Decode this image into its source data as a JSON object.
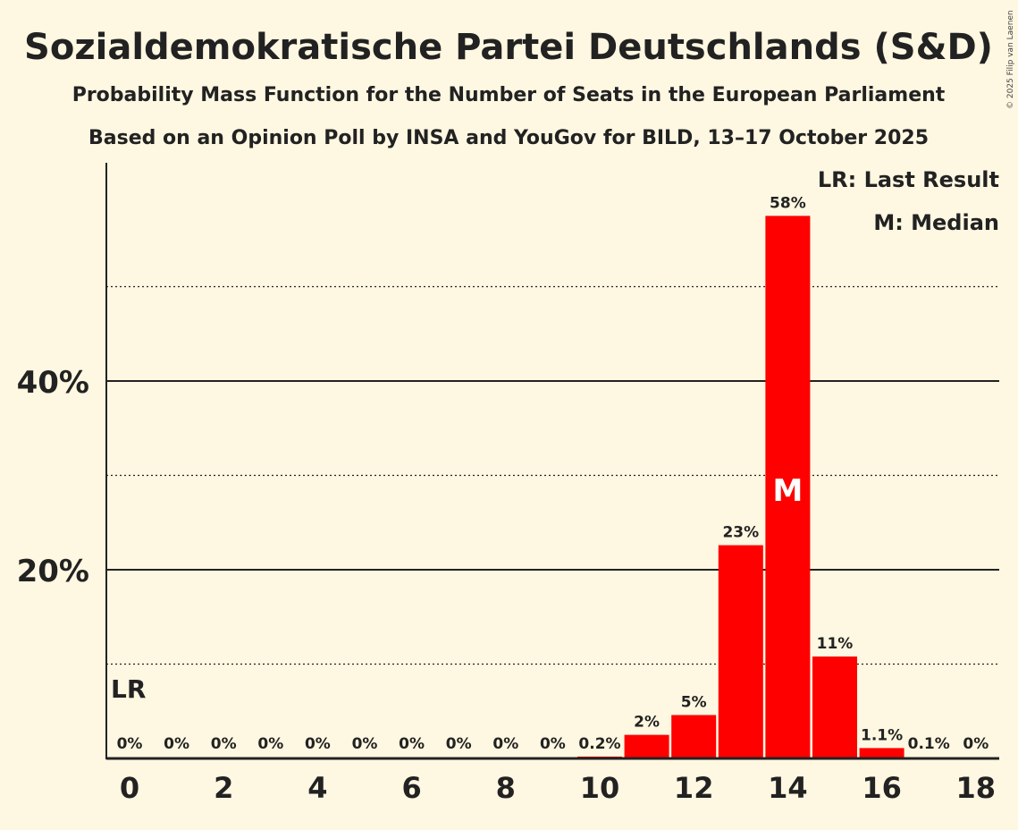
{
  "chart_data": {
    "type": "bar",
    "title": "Sozialdemokratische Partei Deutschlands (S&D)",
    "subtitle1": "Probability Mass Function for the Number of Seats in the European Parliament",
    "subtitle2": "Based on an Opinion Poll by INSA and YouGov for BILD, 13–17 October 2025",
    "copyright": "© 2025 Filip van Laenen",
    "categories": [
      0,
      1,
      2,
      3,
      4,
      5,
      6,
      7,
      8,
      9,
      10,
      11,
      12,
      13,
      14,
      15,
      16,
      17,
      18
    ],
    "values": [
      0,
      0,
      0,
      0,
      0,
      0,
      0,
      0,
      0,
      0,
      0.2,
      2.5,
      4.6,
      22.6,
      57.5,
      10.8,
      1.1,
      0.1,
      0
    ],
    "labels": [
      "0%",
      "0%",
      "0%",
      "0%",
      "0%",
      "0%",
      "0%",
      "0%",
      "0%",
      "0%",
      "0.2%",
      "2%",
      "5%",
      "23%",
      "58%",
      "11%",
      "1.1%",
      "0.1%",
      "0%"
    ],
    "x_tick_labels": [
      "0",
      "2",
      "4",
      "6",
      "8",
      "10",
      "12",
      "14",
      "16",
      "18"
    ],
    "y_tick_labels": [
      {
        "value": 20,
        "label": "20%"
      },
      {
        "value": 40,
        "label": "40%"
      }
    ],
    "ylim": [
      0,
      63
    ],
    "grid_solid": [
      20,
      40
    ],
    "grid_dotted": [
      10,
      30,
      50
    ],
    "last_result_seat": 0,
    "last_result_marker": "LR",
    "median_seat": 14,
    "median_marker": "M",
    "legend": [
      "LR: Last Result",
      "M: Median"
    ],
    "bar_color": "#ff0000"
  }
}
